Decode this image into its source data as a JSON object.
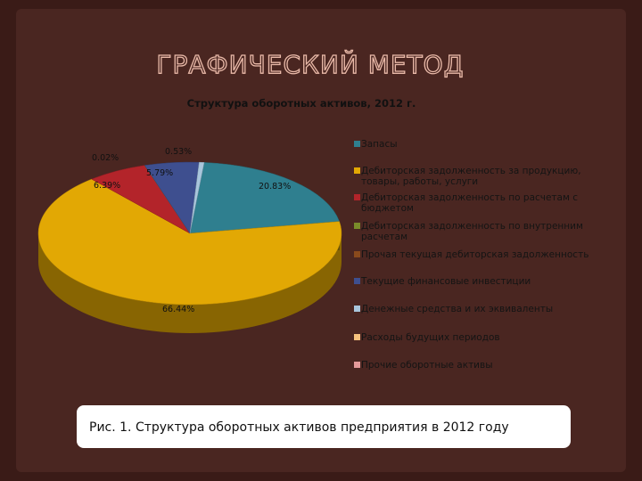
{
  "slide_title": "ГРАФИЧЕСКИЙ МЕТОД",
  "caption": "Рис. 1. Структура оборотных активов предприятия в 2012 году",
  "chart_data": {
    "type": "pie3d",
    "title": "Структура оборотных активов, 2012 г.",
    "categories": [
      "Запасы",
      "Дебиторская задолженность за продукцию, товары, работы, услуги",
      "Дебиторская задолженность по расчетам с бюджетом",
      "Дебиторская задолженность по внутренним расчетам",
      "Прочая текущая дебиторская задолженность",
      "Текущие финансовые инвестиции",
      "Денежные средства и их эквиваленты",
      "Расходы будущих периодов",
      "Прочие оборотные активы"
    ],
    "values": [
      20.83,
      66.44,
      6.39,
      0.02,
      0,
      5.79,
      0.53,
      0,
      0
    ],
    "value_labels": [
      "20.83%",
      "66.44%",
      "6.39%",
      "0.02%",
      null,
      "5.79%",
      "0.53%",
      null,
      null
    ],
    "colors": [
      "#2f7f8f",
      "#e2a804",
      "#b3242a",
      "#7a8c2a",
      "#8a4a1c",
      "#3e4f8f",
      "#a9c6dc",
      "#f6c27e",
      "#e59a9a"
    ],
    "legend": "right"
  }
}
